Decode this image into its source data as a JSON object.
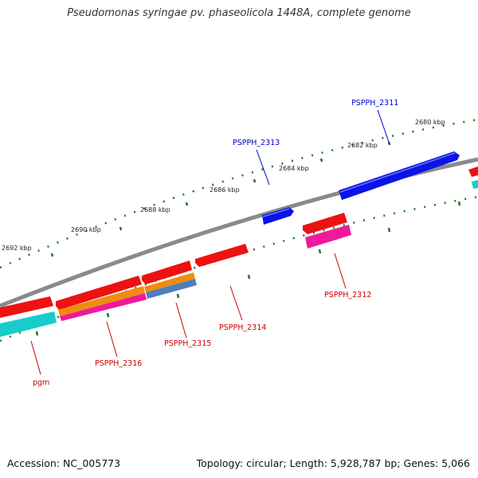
{
  "title": "Pseudomonas syringae pv. phaseolicola 1448A, complete genome",
  "footer": {
    "accession": "Accession: NC_005773",
    "summary": "Topology: circular; Length: 5,928,787 bp; Genes: 5,066"
  },
  "colors": {
    "backbone": "#7f7f7f",
    "ticks": "#1f7a1f",
    "forward_label": "#0000cc",
    "reverse_label": "#cc0000",
    "forward_gene": "#0a14e6",
    "reverse_gene": "#ee1111"
  },
  "scale_ticks": [
    {
      "label": "2680 kbp"
    },
    {
      "label": "2682 kbp"
    },
    {
      "label": "2684 kbp"
    },
    {
      "label": "2686 kbp"
    },
    {
      "label": "2688 kbp"
    },
    {
      "label": "2690 kbp"
    },
    {
      "label": "2692 kbp"
    }
  ],
  "gene_labels": [
    {
      "text": "PSPPH_2311",
      "strand": "forward"
    },
    {
      "text": "PSPPH_2313",
      "strand": "forward"
    },
    {
      "text": "PSPPH_2312",
      "strand": "reverse"
    },
    {
      "text": "PSPPH_2314",
      "strand": "reverse"
    },
    {
      "text": "PSPPH_2315",
      "strand": "reverse"
    },
    {
      "text": "PSPPH_2316",
      "strand": "reverse"
    },
    {
      "text": "pgm",
      "strand": "reverse"
    }
  ]
}
